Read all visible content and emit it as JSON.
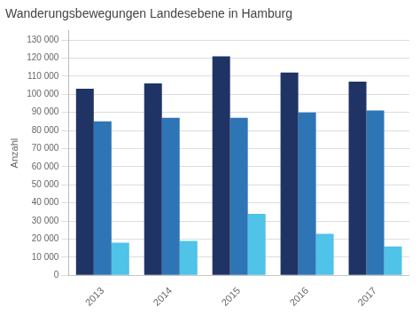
{
  "chart_data": {
    "type": "bar",
    "title": "Wanderungsbewegungen Landesebene in Hamburg",
    "ylabel": "Anzahl",
    "categories": [
      "2013",
      "2014",
      "2015",
      "2016",
      "2017"
    ],
    "series": [
      {
        "color": "#1f3464",
        "values": [
          103000,
          106000,
          121000,
          112000,
          107000
        ]
      },
      {
        "color": "#2e75b6",
        "values": [
          85000,
          87000,
          87000,
          90000,
          91000
        ]
      },
      {
        "color": "#4fc3e8",
        "values": [
          18000,
          19000,
          34000,
          23000,
          16000
        ]
      }
    ],
    "ylim": [
      0,
      135000
    ],
    "yticks": [
      0,
      {
        "value": 10000,
        "label": "10 000"
      },
      {
        "value": 20000,
        "label": "20 000"
      },
      {
        "value": 30000,
        "label": "30 000"
      },
      {
        "value": 40000,
        "label": "40 000"
      },
      {
        "value": 50000,
        "label": "50 000"
      },
      {
        "value": 60000,
        "label": "60 000"
      },
      {
        "value": 70000,
        "label": "70 000"
      },
      {
        "value": 80000,
        "label": "80 000"
      },
      {
        "value": 90000,
        "label": "90 000"
      },
      {
        "value": 100000,
        "label": "100 000"
      },
      {
        "value": 110000,
        "label": "110 000"
      },
      {
        "value": 120000,
        "label": "120 000"
      },
      {
        "value": 130000,
        "label": "130 000"
      }
    ],
    "grid": true
  }
}
